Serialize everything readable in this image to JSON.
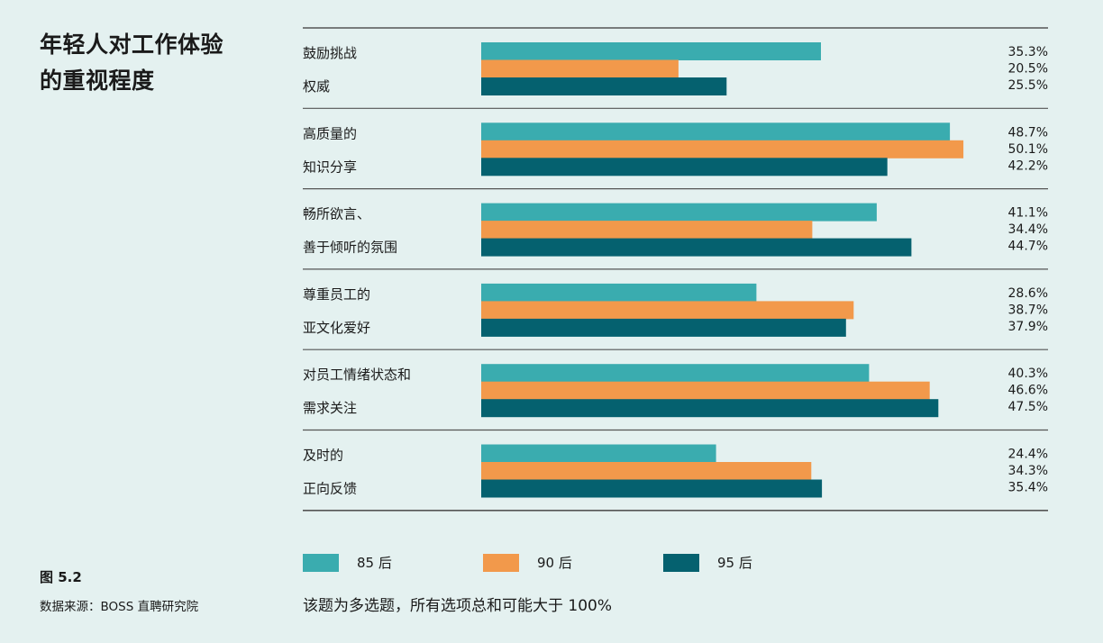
{
  "title": "年轻人对工作体验\n的重视程度",
  "figure_label": "图 5.2",
  "source": "数据来源：BOSS 直聘研究院",
  "note": "该题为多选题，所有选项总和可能大于 100%",
  "colors": {
    "85后": "#3aacaf",
    "90后": "#f2994b",
    "95后": "#05616f",
    "rule": "#555555"
  },
  "chart_data": {
    "type": "bar",
    "orientation": "horizontal",
    "title": "",
    "xlabel": "",
    "ylabel": "",
    "xlim": [
      0,
      52
    ],
    "grid": false,
    "legend_position": "bottom",
    "categories": [
      [
        "鼓励挑战",
        "权威"
      ],
      [
        "高质量的",
        "知识分享"
      ],
      [
        "畅所欲言、",
        "善于倾听的氛围"
      ],
      [
        "尊重员工的",
        "亚文化爱好"
      ],
      [
        "对员工情绪状态和",
        "需求关注"
      ],
      [
        "及时的",
        "正向反馈"
      ]
    ],
    "series": [
      {
        "name": "85 后",
        "values": [
          35.3,
          48.7,
          41.1,
          28.6,
          40.3,
          24.4
        ],
        "labels": [
          "35.3%",
          "48.7%",
          "41.1%",
          "28.6%",
          "40.3%",
          "24.4%"
        ]
      },
      {
        "name": "90 后",
        "values": [
          20.5,
          50.1,
          34.4,
          38.7,
          46.6,
          34.3
        ],
        "labels": [
          "20.5%",
          "50.1%",
          "34.4%",
          "38.7%",
          "46.6%",
          "34.3%"
        ]
      },
      {
        "name": "95 后",
        "values": [
          25.5,
          42.2,
          44.7,
          37.9,
          47.5,
          35.4
        ],
        "labels": [
          "25.5%",
          "42.2%",
          "44.7%",
          "37.9%",
          "47.5%",
          "35.4%"
        ]
      }
    ]
  }
}
